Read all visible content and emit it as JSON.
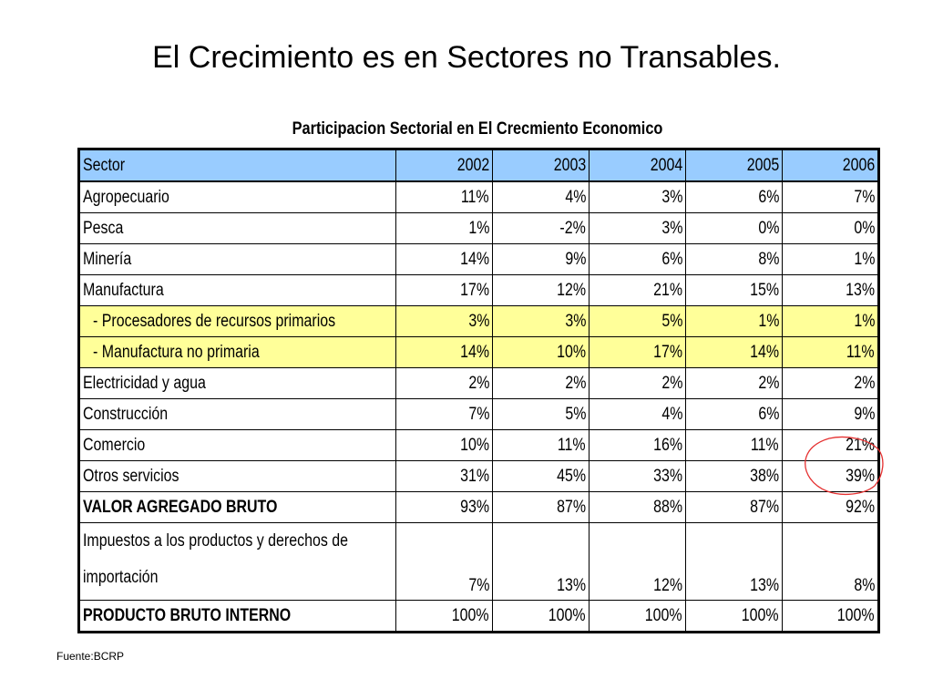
{
  "slide": {
    "title": "El Crecimiento es en Sectores no Transables.",
    "caption": "Participacion Sectorial en El Crecmiento Economico",
    "source": "Fuente:BCRP"
  },
  "table": {
    "header": {
      "sector": "Sector",
      "years": [
        "2002",
        "2003",
        "2004",
        "2005",
        "2006"
      ]
    },
    "rows": [
      {
        "sector": "Agropecuario",
        "values": [
          "11%",
          "4%",
          "3%",
          "6%",
          "7%"
        ]
      },
      {
        "sector": "Pesca",
        "values": [
          "1%",
          "-2%",
          "3%",
          "0%",
          "0%"
        ]
      },
      {
        "sector": "Minería",
        "values": [
          "14%",
          "9%",
          "6%",
          "8%",
          "1%"
        ]
      },
      {
        "sector": "Manufactura",
        "values": [
          "17%",
          "12%",
          "21%",
          "15%",
          "13%"
        ]
      },
      {
        "sector": "- Procesadores de recursos primarios",
        "values": [
          "3%",
          "3%",
          "5%",
          "1%",
          "1%"
        ]
      },
      {
        "sector": "- Manufactura no primaria",
        "values": [
          "14%",
          "10%",
          "17%",
          "14%",
          "11%"
        ]
      },
      {
        "sector": "Electricidad y agua",
        "values": [
          "2%",
          "2%",
          "2%",
          "2%",
          "2%"
        ]
      },
      {
        "sector": "Construcción",
        "values": [
          "7%",
          "5%",
          "4%",
          "6%",
          "9%"
        ]
      },
      {
        "sector": "Comercio",
        "values": [
          "10%",
          "11%",
          "16%",
          "11%",
          "21%"
        ]
      },
      {
        "sector": "Otros servicios",
        "values": [
          "31%",
          "45%",
          "33%",
          "38%",
          "39%"
        ]
      },
      {
        "sector": "VALOR AGREGADO BRUTO",
        "values": [
          "93%",
          "87%",
          "88%",
          "87%",
          "92%"
        ]
      },
      {
        "sector": "Impuestos a los productos y derechos de importación",
        "values": [
          "7%",
          "13%",
          "12%",
          "13%",
          "8%"
        ]
      },
      {
        "sector": "PRODUCTO BRUTO INTERNO",
        "values": [
          "100%",
          "100%",
          "100%",
          "100%",
          "100%"
        ]
      }
    ]
  },
  "colors": {
    "header_bg": "#99ccff",
    "subrow_bg": "#ffff99",
    "highlight_circle": "#e53030"
  }
}
